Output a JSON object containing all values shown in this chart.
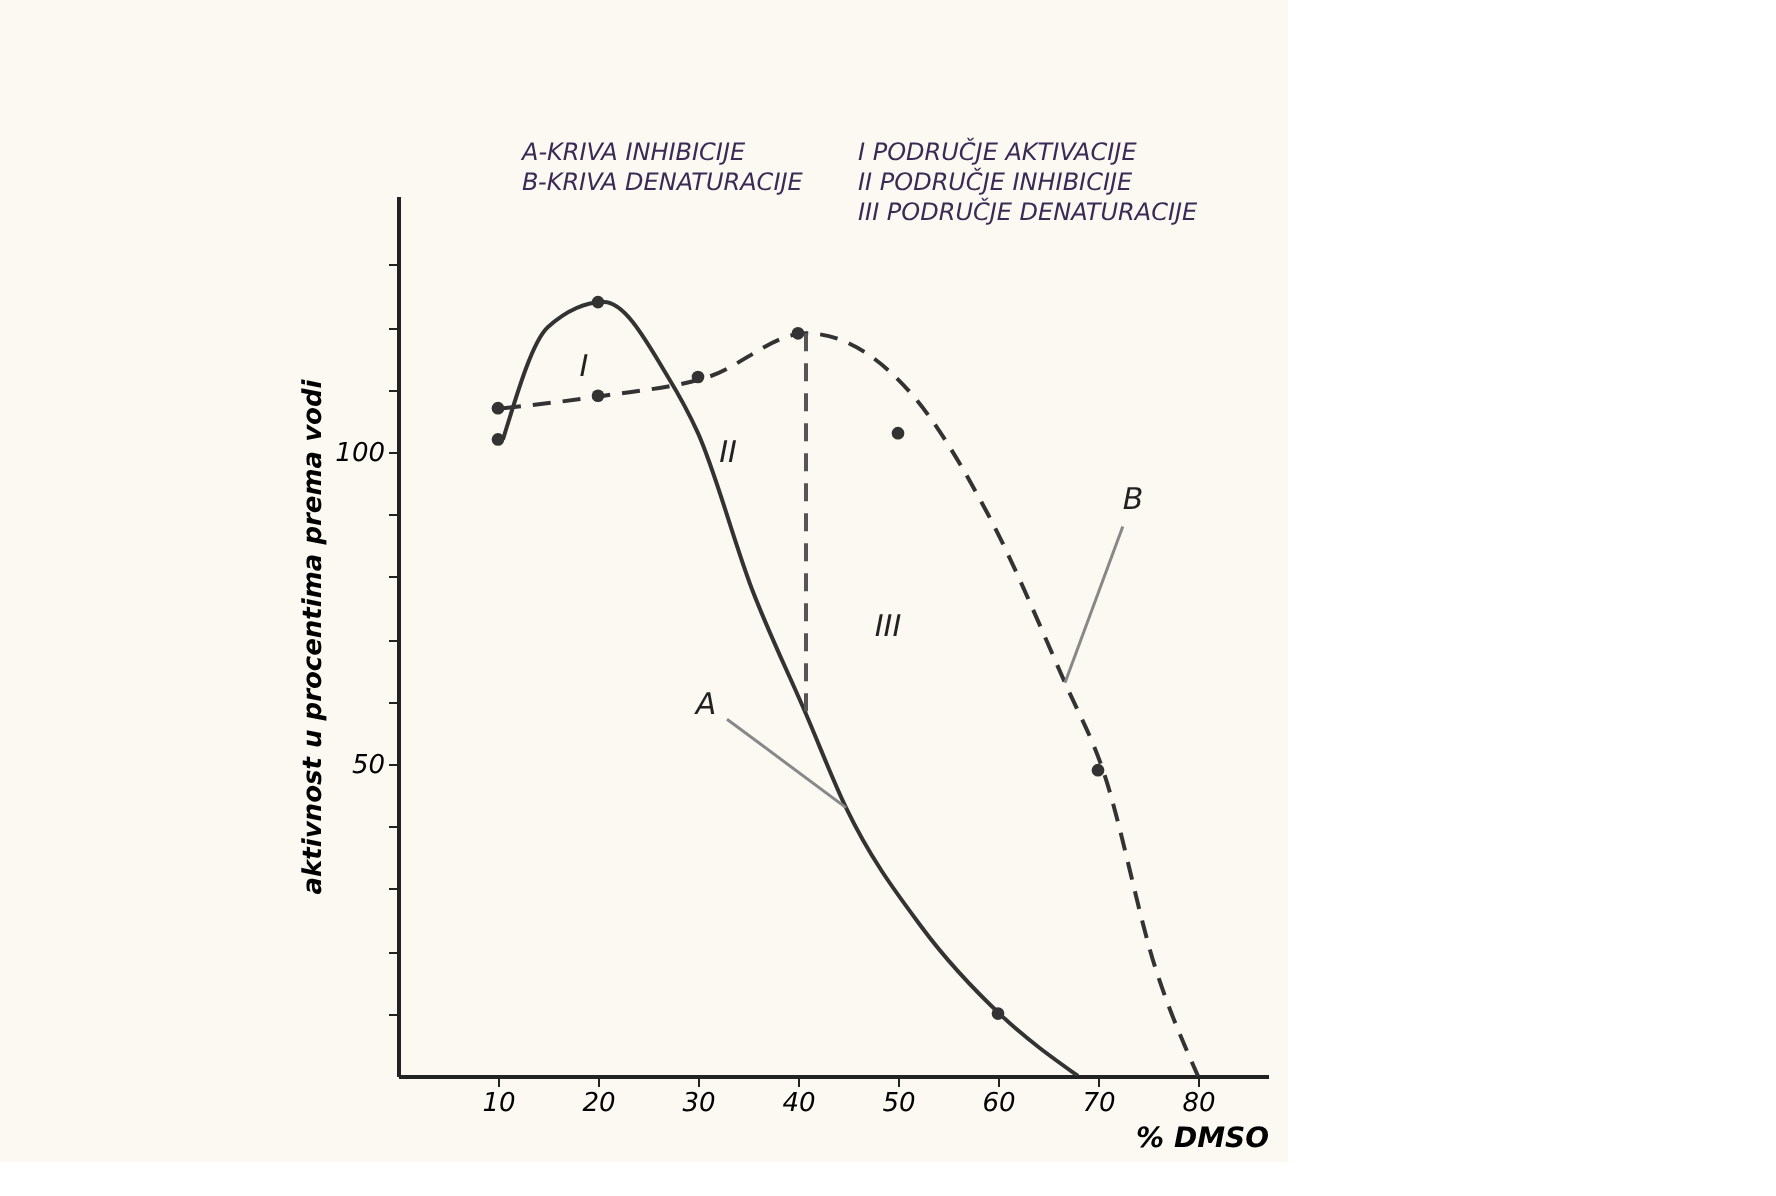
{
  "chart_data": {
    "type": "line",
    "xlabel": "% DMSO",
    "ylabel": "aktivnost u procentima prema vodi",
    "xlim": [
      0,
      87
    ],
    "ylim": [
      0,
      141
    ],
    "xticks": [
      10,
      20,
      30,
      40,
      50,
      60,
      70,
      80
    ],
    "yticks": [
      {
        "value": 10,
        "label": null
      },
      {
        "value": 20,
        "label": null
      },
      {
        "value": 30,
        "label": null
      },
      {
        "value": 40,
        "label": null
      },
      50,
      {
        "value": 60,
        "label": null
      },
      {
        "value": 70,
        "label": null
      },
      {
        "value": 80,
        "label": null
      },
      {
        "value": 90,
        "label": null
      },
      100,
      {
        "value": 110,
        "label": null
      },
      {
        "value": 120,
        "label": null
      },
      {
        "value": 130,
        "label": null
      }
    ],
    "grid": false,
    "marker": "none",
    "series": [
      {
        "color": "#333333",
        "line_style": "solid",
        "x": [
          10.5,
          15,
          20.6,
          27,
          30,
          35.4,
          40.8,
          44.8,
          52.3,
          60.4,
          68
        ],
        "values": [
          102,
          120,
          124,
          112,
          103,
          78,
          58,
          43,
          24,
          9.6,
          0
        ]
      },
      {
        "color": "#333333",
        "line_style": "dashed",
        "x": [
          10.5,
          20.6,
          31,
          40.8,
          51.5,
          59,
          66.7,
          70.5,
          75.8,
          80
        ],
        "values": [
          107,
          109,
          112,
          119,
          109,
          90,
          63,
          49,
          17,
          0
        ]
      },
      {
        "type": "line",
        "color": "#555555",
        "line_style": "dashed",
        "x": [
          40.8,
          40.8
        ],
        "values": [
          119,
          58
        ]
      },
      {
        "type": "scatter",
        "color": "#333333",
        "marker": "circle",
        "x": [
          10,
          20,
          60
        ],
        "values": [
          102,
          124,
          10
        ]
      },
      {
        "type": "scatter",
        "color": "#333333",
        "marker": "circle",
        "x": [
          10,
          20,
          30,
          40,
          50,
          70
        ],
        "values": [
          107,
          109,
          112,
          119,
          103,
          49
        ]
      }
    ],
    "annotations": [
      "A-KRIVA INHIBICIJE",
      "B-KRIVA DENATURACIJE",
      "I PODRUČJE AKTIVACIJE",
      "II PODRUČJE INHIBICIJE",
      "III PODRUČJE DENATURACIJE",
      "I",
      "II",
      "III",
      {
        "text": "A",
        "x": 44.8,
        "y": 43
      },
      {
        "text": "B",
        "x": 66.7,
        "y": 63
      }
    ]
  }
}
